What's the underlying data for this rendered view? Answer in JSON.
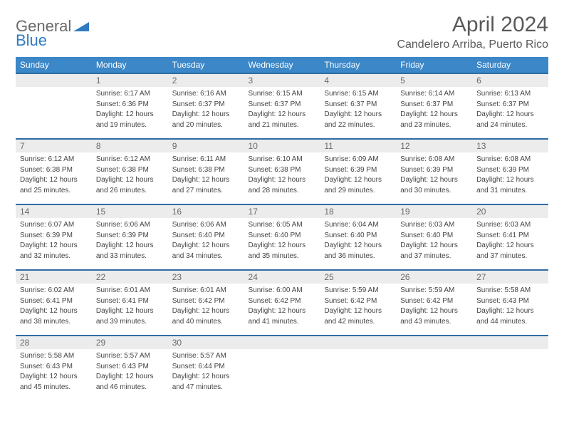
{
  "brand": {
    "text1": "General",
    "text2": "Blue"
  },
  "title": "April 2024",
  "location": "Candelero Arriba, Puerto Rico",
  "colors": {
    "header_bg": "#3b87c8",
    "header_text": "#ffffff",
    "row_border": "#2e6da4",
    "daynum_bg": "#ececec",
    "daynum_text": "#6a6a6a",
    "body_text": "#444444",
    "title_text": "#5a5a5a"
  },
  "weekdays": [
    "Sunday",
    "Monday",
    "Tuesday",
    "Wednesday",
    "Thursday",
    "Friday",
    "Saturday"
  ],
  "weeks": [
    [
      null,
      {
        "n": "1",
        "sunrise": "Sunrise: 6:17 AM",
        "sunset": "Sunset: 6:36 PM",
        "day1": "Daylight: 12 hours",
        "day2": "and 19 minutes."
      },
      {
        "n": "2",
        "sunrise": "Sunrise: 6:16 AM",
        "sunset": "Sunset: 6:37 PM",
        "day1": "Daylight: 12 hours",
        "day2": "and 20 minutes."
      },
      {
        "n": "3",
        "sunrise": "Sunrise: 6:15 AM",
        "sunset": "Sunset: 6:37 PM",
        "day1": "Daylight: 12 hours",
        "day2": "and 21 minutes."
      },
      {
        "n": "4",
        "sunrise": "Sunrise: 6:15 AM",
        "sunset": "Sunset: 6:37 PM",
        "day1": "Daylight: 12 hours",
        "day2": "and 22 minutes."
      },
      {
        "n": "5",
        "sunrise": "Sunrise: 6:14 AM",
        "sunset": "Sunset: 6:37 PM",
        "day1": "Daylight: 12 hours",
        "day2": "and 23 minutes."
      },
      {
        "n": "6",
        "sunrise": "Sunrise: 6:13 AM",
        "sunset": "Sunset: 6:37 PM",
        "day1": "Daylight: 12 hours",
        "day2": "and 24 minutes."
      }
    ],
    [
      {
        "n": "7",
        "sunrise": "Sunrise: 6:12 AM",
        "sunset": "Sunset: 6:38 PM",
        "day1": "Daylight: 12 hours",
        "day2": "and 25 minutes."
      },
      {
        "n": "8",
        "sunrise": "Sunrise: 6:12 AM",
        "sunset": "Sunset: 6:38 PM",
        "day1": "Daylight: 12 hours",
        "day2": "and 26 minutes."
      },
      {
        "n": "9",
        "sunrise": "Sunrise: 6:11 AM",
        "sunset": "Sunset: 6:38 PM",
        "day1": "Daylight: 12 hours",
        "day2": "and 27 minutes."
      },
      {
        "n": "10",
        "sunrise": "Sunrise: 6:10 AM",
        "sunset": "Sunset: 6:38 PM",
        "day1": "Daylight: 12 hours",
        "day2": "and 28 minutes."
      },
      {
        "n": "11",
        "sunrise": "Sunrise: 6:09 AM",
        "sunset": "Sunset: 6:39 PM",
        "day1": "Daylight: 12 hours",
        "day2": "and 29 minutes."
      },
      {
        "n": "12",
        "sunrise": "Sunrise: 6:08 AM",
        "sunset": "Sunset: 6:39 PM",
        "day1": "Daylight: 12 hours",
        "day2": "and 30 minutes."
      },
      {
        "n": "13",
        "sunrise": "Sunrise: 6:08 AM",
        "sunset": "Sunset: 6:39 PM",
        "day1": "Daylight: 12 hours",
        "day2": "and 31 minutes."
      }
    ],
    [
      {
        "n": "14",
        "sunrise": "Sunrise: 6:07 AM",
        "sunset": "Sunset: 6:39 PM",
        "day1": "Daylight: 12 hours",
        "day2": "and 32 minutes."
      },
      {
        "n": "15",
        "sunrise": "Sunrise: 6:06 AM",
        "sunset": "Sunset: 6:39 PM",
        "day1": "Daylight: 12 hours",
        "day2": "and 33 minutes."
      },
      {
        "n": "16",
        "sunrise": "Sunrise: 6:06 AM",
        "sunset": "Sunset: 6:40 PM",
        "day1": "Daylight: 12 hours",
        "day2": "and 34 minutes."
      },
      {
        "n": "17",
        "sunrise": "Sunrise: 6:05 AM",
        "sunset": "Sunset: 6:40 PM",
        "day1": "Daylight: 12 hours",
        "day2": "and 35 minutes."
      },
      {
        "n": "18",
        "sunrise": "Sunrise: 6:04 AM",
        "sunset": "Sunset: 6:40 PM",
        "day1": "Daylight: 12 hours",
        "day2": "and 36 minutes."
      },
      {
        "n": "19",
        "sunrise": "Sunrise: 6:03 AM",
        "sunset": "Sunset: 6:40 PM",
        "day1": "Daylight: 12 hours",
        "day2": "and 37 minutes."
      },
      {
        "n": "20",
        "sunrise": "Sunrise: 6:03 AM",
        "sunset": "Sunset: 6:41 PM",
        "day1": "Daylight: 12 hours",
        "day2": "and 37 minutes."
      }
    ],
    [
      {
        "n": "21",
        "sunrise": "Sunrise: 6:02 AM",
        "sunset": "Sunset: 6:41 PM",
        "day1": "Daylight: 12 hours",
        "day2": "and 38 minutes."
      },
      {
        "n": "22",
        "sunrise": "Sunrise: 6:01 AM",
        "sunset": "Sunset: 6:41 PM",
        "day1": "Daylight: 12 hours",
        "day2": "and 39 minutes."
      },
      {
        "n": "23",
        "sunrise": "Sunrise: 6:01 AM",
        "sunset": "Sunset: 6:42 PM",
        "day1": "Daylight: 12 hours",
        "day2": "and 40 minutes."
      },
      {
        "n": "24",
        "sunrise": "Sunrise: 6:00 AM",
        "sunset": "Sunset: 6:42 PM",
        "day1": "Daylight: 12 hours",
        "day2": "and 41 minutes."
      },
      {
        "n": "25",
        "sunrise": "Sunrise: 5:59 AM",
        "sunset": "Sunset: 6:42 PM",
        "day1": "Daylight: 12 hours",
        "day2": "and 42 minutes."
      },
      {
        "n": "26",
        "sunrise": "Sunrise: 5:59 AM",
        "sunset": "Sunset: 6:42 PM",
        "day1": "Daylight: 12 hours",
        "day2": "and 43 minutes."
      },
      {
        "n": "27",
        "sunrise": "Sunrise: 5:58 AM",
        "sunset": "Sunset: 6:43 PM",
        "day1": "Daylight: 12 hours",
        "day2": "and 44 minutes."
      }
    ],
    [
      {
        "n": "28",
        "sunrise": "Sunrise: 5:58 AM",
        "sunset": "Sunset: 6:43 PM",
        "day1": "Daylight: 12 hours",
        "day2": "and 45 minutes."
      },
      {
        "n": "29",
        "sunrise": "Sunrise: 5:57 AM",
        "sunset": "Sunset: 6:43 PM",
        "day1": "Daylight: 12 hours",
        "day2": "and 46 minutes."
      },
      {
        "n": "30",
        "sunrise": "Sunrise: 5:57 AM",
        "sunset": "Sunset: 6:44 PM",
        "day1": "Daylight: 12 hours",
        "day2": "and 47 minutes."
      },
      null,
      null,
      null,
      null
    ]
  ]
}
